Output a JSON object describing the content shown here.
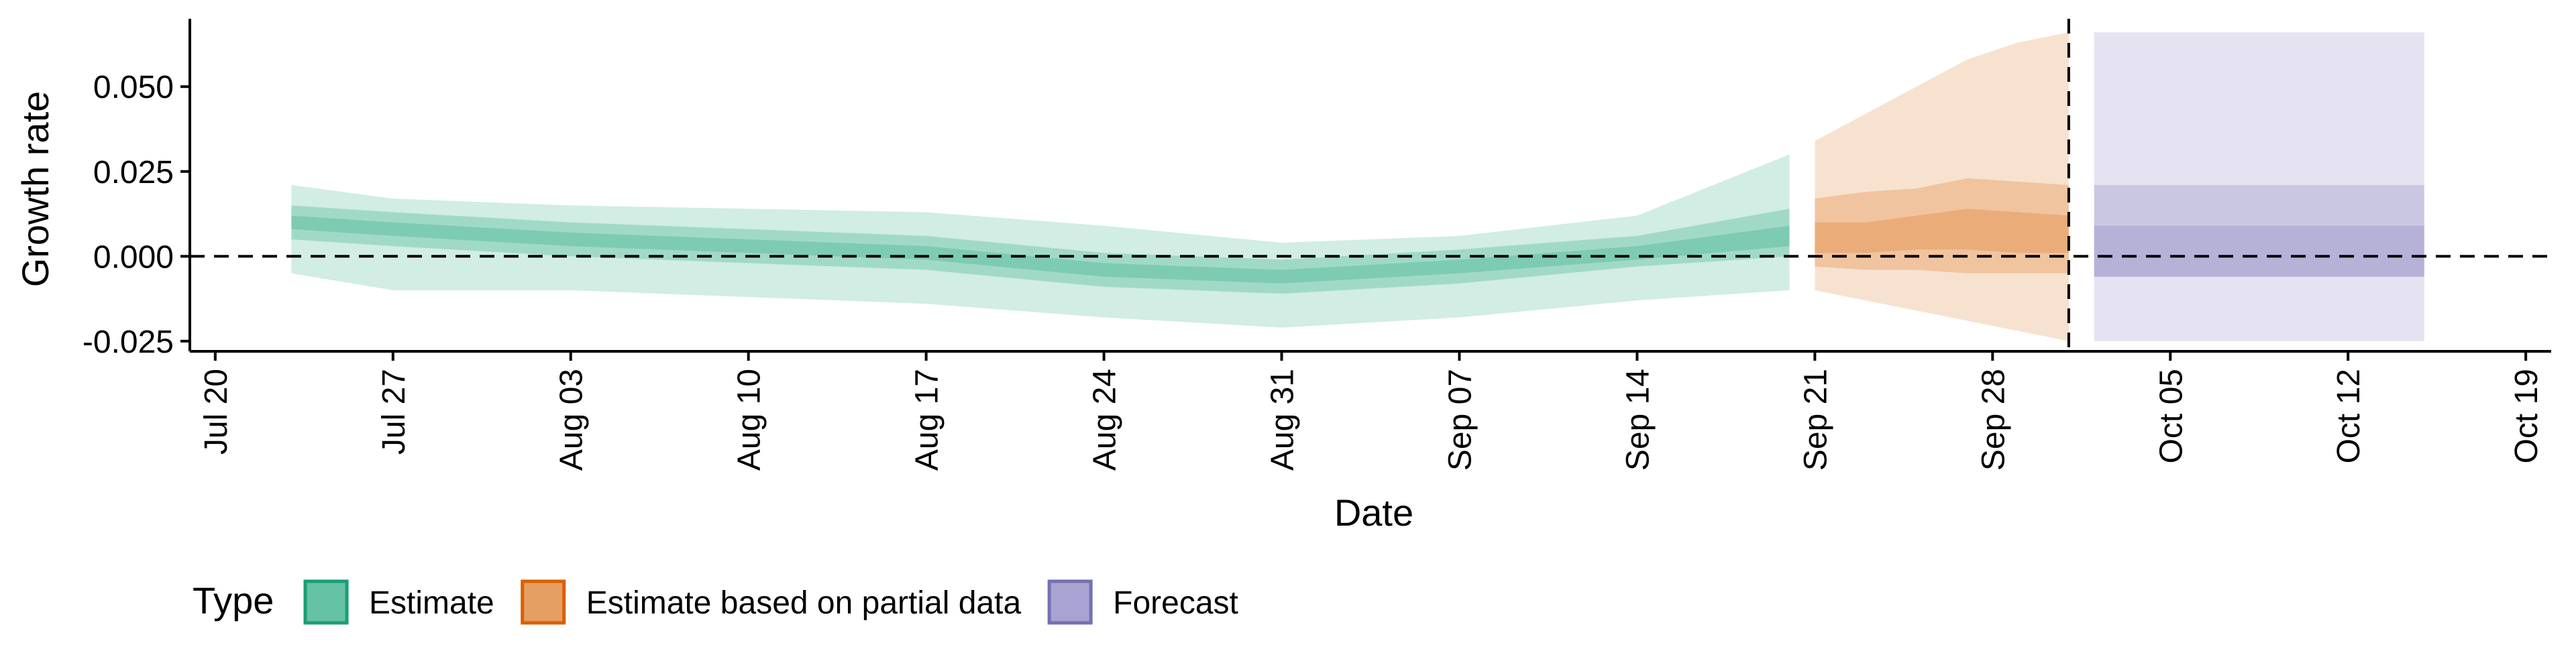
{
  "chart_data": {
    "type": "area",
    "xlabel": "Date",
    "ylabel": "Growth rate",
    "x_ticks": [
      "Jul 20",
      "Jul 27",
      "Aug 03",
      "Aug 10",
      "Aug 17",
      "Aug 24",
      "Aug 31",
      "Sep 07",
      "Sep 14",
      "Sep 21",
      "Sep 28",
      "Oct 05",
      "Oct 12",
      "Oct 19"
    ],
    "y_ticks": [
      "-0.025",
      "0.000",
      "0.025",
      "0.050"
    ],
    "y_range": [
      -0.028,
      0.07
    ],
    "x_range": [
      "2020-07-19",
      "2020-10-20"
    ],
    "reference_lines": {
      "horizontal_y": 0,
      "vertical_date": "2020-10-01",
      "style": "dashed"
    },
    "legend": {
      "title": "Type",
      "position": "bottom-left",
      "entries": [
        {
          "label": "Estimate",
          "fill": "#66c2a5",
          "stroke": "#1b9e77"
        },
        {
          "label": "Estimate based on partial data",
          "fill": "#e69f63",
          "stroke": "#d95f02"
        },
        {
          "label": "Forecast",
          "fill": "#a9a3d1",
          "stroke": "#7570b3"
        }
      ]
    },
    "series": [
      {
        "name": "Estimate",
        "color": "#1b9e77",
        "x": [
          "2020-07-23",
          "2020-07-27",
          "2020-08-03",
          "2020-08-10",
          "2020-08-17",
          "2020-08-24",
          "2020-08-31",
          "2020-09-07",
          "2020-09-14",
          "2020-09-20"
        ],
        "median": [
          0.01,
          0.008,
          0.005,
          0.003,
          0.001,
          -0.004,
          -0.006,
          -0.003,
          0.001,
          0.006
        ],
        "inner": [
          [
            0.008,
            0.012
          ],
          [
            0.006,
            0.01
          ],
          [
            0.003,
            0.007
          ],
          [
            0.001,
            0.005
          ],
          [
            -0.001,
            0.003
          ],
          [
            -0.006,
            -0.002
          ],
          [
            -0.008,
            -0.004
          ],
          [
            -0.005,
            -0.001
          ],
          [
            -0.001,
            0.003
          ],
          [
            0.003,
            0.009
          ]
        ],
        "mid": [
          [
            0.005,
            0.015
          ],
          [
            0.003,
            0.013
          ],
          [
            0.0,
            0.01
          ],
          [
            -0.002,
            0.008
          ],
          [
            -0.004,
            0.006
          ],
          [
            -0.009,
            0.001
          ],
          [
            -0.011,
            -0.001
          ],
          [
            -0.008,
            0.002
          ],
          [
            -0.003,
            0.006
          ],
          [
            0.0,
            0.014
          ]
        ],
        "outer": [
          [
            -0.005,
            0.021
          ],
          [
            -0.01,
            0.017
          ],
          [
            -0.01,
            0.015
          ],
          [
            -0.012,
            0.014
          ],
          [
            -0.014,
            0.013
          ],
          [
            -0.018,
            0.009
          ],
          [
            -0.021,
            0.004
          ],
          [
            -0.018,
            0.006
          ],
          [
            -0.013,
            0.012
          ],
          [
            -0.01,
            0.03
          ]
        ]
      },
      {
        "name": "Estimate based on partial data",
        "color": "#d95f02",
        "x": [
          "2020-09-21",
          "2020-09-23",
          "2020-09-25",
          "2020-09-27",
          "2020-09-29",
          "2020-10-01"
        ],
        "median": [
          0.006,
          0.006,
          0.007,
          0.008,
          0.007,
          0.007
        ],
        "inner": [
          [
            0.001,
            0.01
          ],
          [
            0.001,
            0.01
          ],
          [
            0.002,
            0.012
          ],
          [
            0.002,
            0.014
          ],
          [
            0.001,
            0.013
          ],
          [
            0.001,
            0.012
          ]
        ],
        "mid": [
          [
            -0.003,
            0.017
          ],
          [
            -0.004,
            0.019
          ],
          [
            -0.004,
            0.02
          ],
          [
            -0.005,
            0.023
          ],
          [
            -0.005,
            0.022
          ],
          [
            -0.005,
            0.021
          ]
        ],
        "outer": [
          [
            -0.01,
            0.034
          ],
          [
            -0.013,
            0.042
          ],
          [
            -0.016,
            0.05
          ],
          [
            -0.019,
            0.058
          ],
          [
            -0.022,
            0.063
          ],
          [
            -0.025,
            0.066
          ]
        ]
      },
      {
        "name": "Forecast",
        "color": "#7570b3",
        "x": [
          "2020-10-02",
          "2020-10-15"
        ],
        "median": [
          0.002,
          0.002
        ],
        "inner": [
          [
            -0.006,
            0.009
          ],
          [
            -0.006,
            0.009
          ]
        ],
        "mid": [
          [
            -0.006,
            0.021
          ],
          [
            -0.006,
            0.021
          ]
        ],
        "outer": [
          [
            -0.025,
            0.066
          ],
          [
            -0.025,
            0.066
          ]
        ]
      }
    ]
  }
}
